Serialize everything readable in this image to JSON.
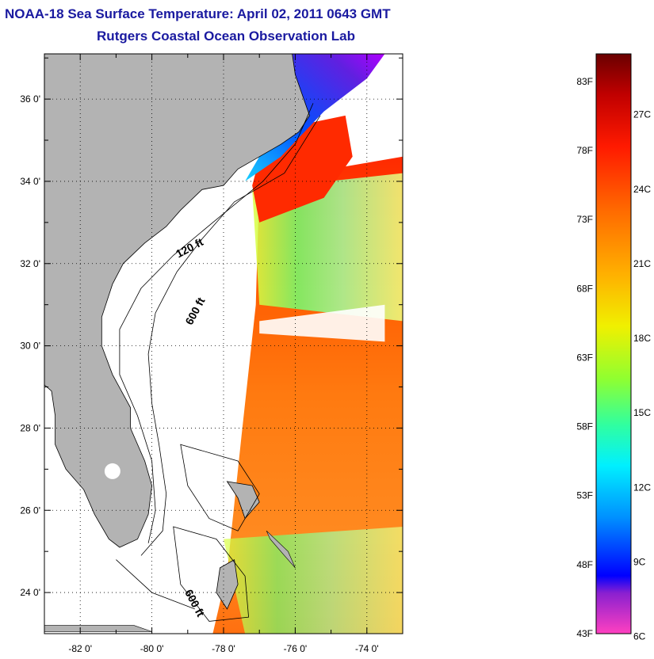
{
  "title": "NOAA-18 Sea Surface Temperature:  April 02, 2011 0643 GMT",
  "subtitle": "Rutgers Coastal Ocean Observation Lab",
  "map": {
    "lon_range": [
      -83.0,
      -73.0
    ],
    "lat_range": [
      23.0,
      37.1
    ],
    "lon_ticks": [
      {
        "value": -82,
        "label": "-82 0'"
      },
      {
        "value": -80,
        "label": "-80 0'"
      },
      {
        "value": -78,
        "label": "-78 0'"
      },
      {
        "value": -76,
        "label": "-76 0'"
      },
      {
        "value": -74,
        "label": "-74 0'"
      }
    ],
    "lat_ticks": [
      {
        "value": 24,
        "label": "24 0'"
      },
      {
        "value": 26,
        "label": "26 0'"
      },
      {
        "value": 28,
        "label": "28 0'"
      },
      {
        "value": 30,
        "label": "30 0'"
      },
      {
        "value": 32,
        "label": "32 0'"
      },
      {
        "value": 34,
        "label": "34 0'"
      },
      {
        "value": 36,
        "label": "36 0'"
      }
    ],
    "grid": "dotted",
    "contour_labels": [
      {
        "text": "120 ft",
        "lon": -78.9,
        "lat": 32.3
      },
      {
        "text": "600 ft",
        "lon": -78.7,
        "lat": 30.8
      },
      {
        "text": "600 ft",
        "lon": -78.9,
        "lat": 23.7
      }
    ],
    "colors": {
      "land": "#b3b3b3",
      "water": "#ffffff",
      "coast": "#000000",
      "grid": "#000000"
    }
  },
  "colorbar": {
    "min_f": 43,
    "max_f": 85,
    "fahrenheit_labels": [
      "83F",
      "78F",
      "73F",
      "68F",
      "63F",
      "58F",
      "53F",
      "48F",
      "43F"
    ],
    "celsius_labels": [
      "27C",
      "24C",
      "21C",
      "18C",
      "15C",
      "12C",
      "9C",
      "6C"
    ],
    "celsius_values": [
      27,
      24,
      21,
      18,
      15,
      12,
      9,
      6
    ]
  }
}
